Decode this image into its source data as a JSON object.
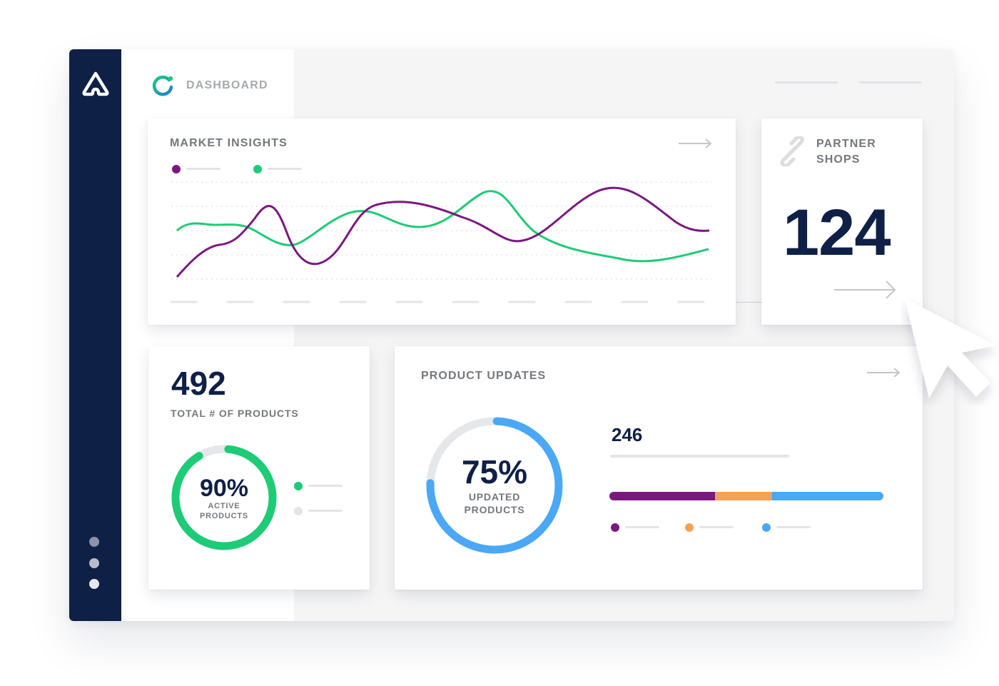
{
  "header": {
    "title": "DASHBOARD"
  },
  "market_insights": {
    "title": "MARKET INSIGHTS",
    "series_colors": [
      "#7b1880",
      "#1ecb77"
    ]
  },
  "partner_shops": {
    "title_line1": "PARTNER",
    "title_line2": "SHOPS",
    "value": "124"
  },
  "total_products": {
    "value": "492",
    "label": "TOTAL # OF PRODUCTS",
    "donut_percent": "90%",
    "donut_label_line1": "ACTIVE",
    "donut_label_line2": "PRODUCTS",
    "donut_fraction": 0.9,
    "donut_color": "#1ecb77",
    "legend_colors": [
      "#1ecb77",
      "#e3e4e7"
    ]
  },
  "product_updates": {
    "title": "PRODUCT UPDATES",
    "donut_percent": "75%",
    "donut_label_line1": "UPDATED",
    "donut_label_line2": "PRODUCTS",
    "donut_fraction": 0.75,
    "donut_color": "#4aa8f5",
    "count": "246",
    "stacked_bar": [
      {
        "color": "#7b1880",
        "fraction": 0.385
      },
      {
        "color": "#f7a155",
        "fraction": 0.21
      },
      {
        "color": "#4aa8f5",
        "fraction": 0.405
      }
    ]
  },
  "colors": {
    "sidebar": "#0f2047",
    "accent_green": "#1ecb77",
    "accent_purple": "#7b1880",
    "accent_orange": "#f7a155",
    "accent_blue": "#4aa8f5",
    "text_dark": "#0f2047",
    "text_muted": "#74777c"
  },
  "icons": [
    "brand-logo-icon",
    "refresh-icon",
    "link-icon",
    "arrow-right-icon",
    "cursor-pointer-icon"
  ]
}
